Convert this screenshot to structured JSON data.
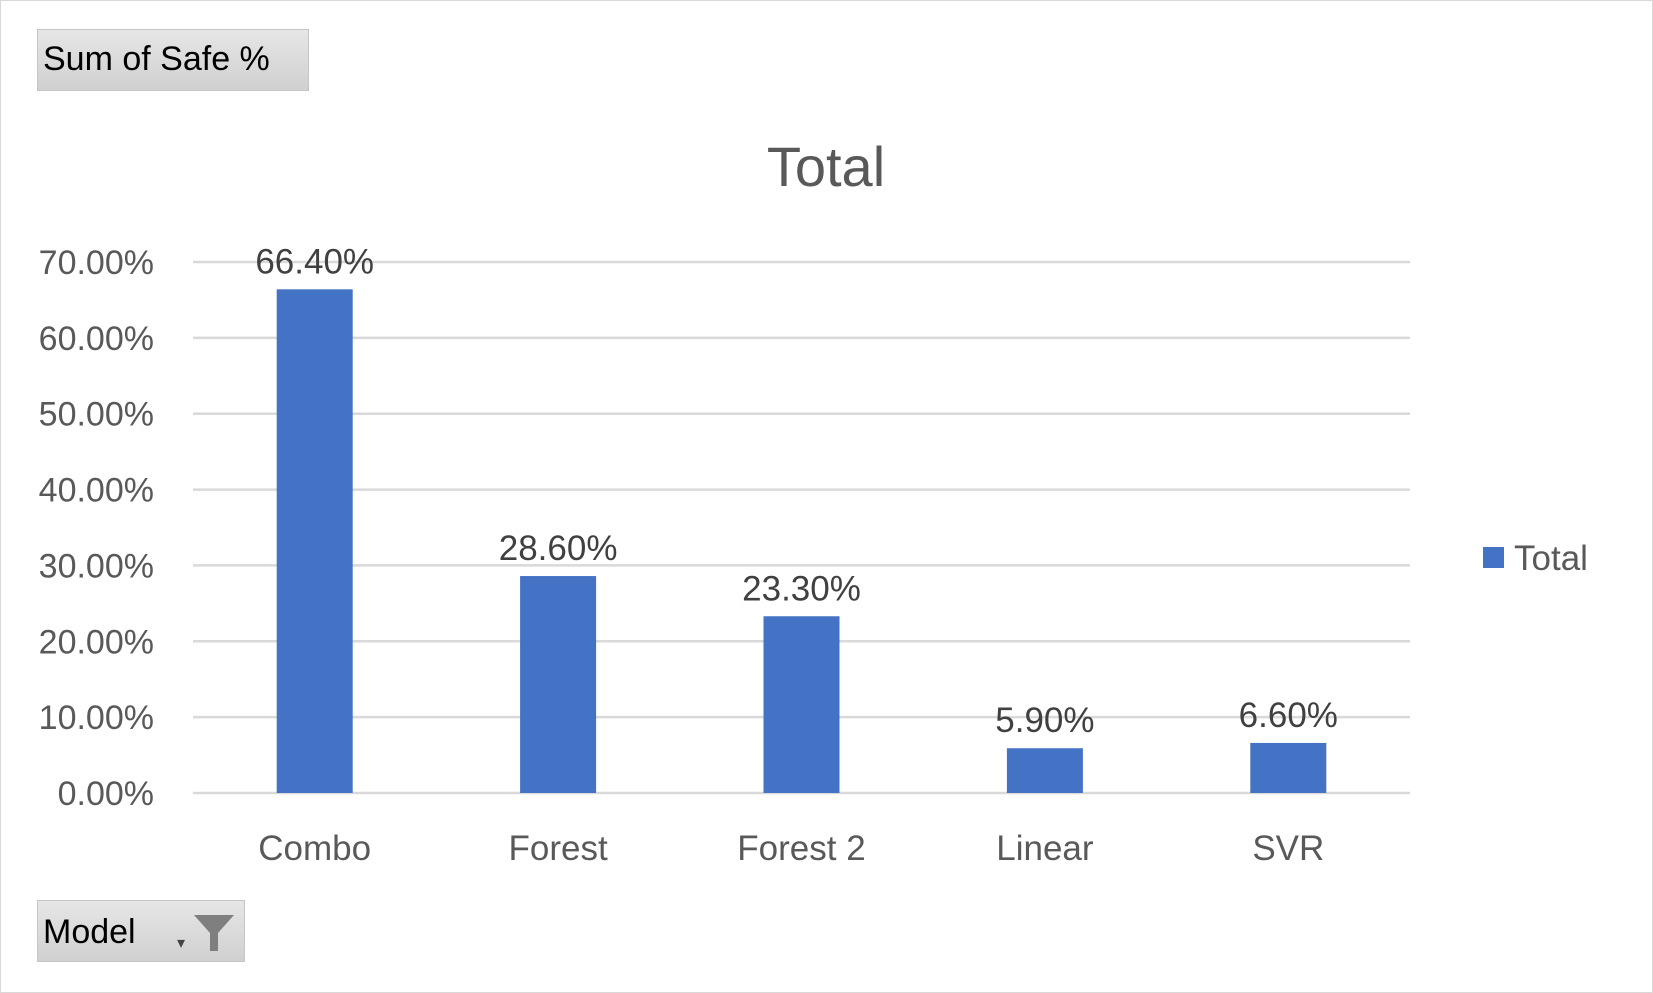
{
  "value_field_button": {
    "label": "Sum of Safe %"
  },
  "axis_field_button": {
    "label": "Model",
    "dropdown_glyph": "▾",
    "icon": "filter-icon"
  },
  "chart_data": {
    "type": "bar",
    "title": "Total",
    "categories": [
      "Combo",
      "Forest",
      "Forest 2",
      "Linear",
      "SVR"
    ],
    "series": [
      {
        "name": "Total",
        "values": [
          66.4,
          28.6,
          23.3,
          5.9,
          6.6
        ],
        "labels": [
          "66.40%",
          "28.60%",
          "23.30%",
          "5.90%",
          "6.60%"
        ],
        "color": "#4472c4"
      }
    ],
    "ylim": [
      0,
      70
    ],
    "yticks": [
      0,
      10,
      20,
      30,
      40,
      50,
      60,
      70
    ],
    "ytick_labels": [
      "0.00%",
      "10.00%",
      "20.00%",
      "30.00%",
      "40.00%",
      "50.00%",
      "60.00%",
      "70.00%"
    ],
    "grid": true,
    "legend": {
      "position": "right",
      "entries": [
        "Total"
      ]
    },
    "gridline_color": "#d9d9d9"
  }
}
